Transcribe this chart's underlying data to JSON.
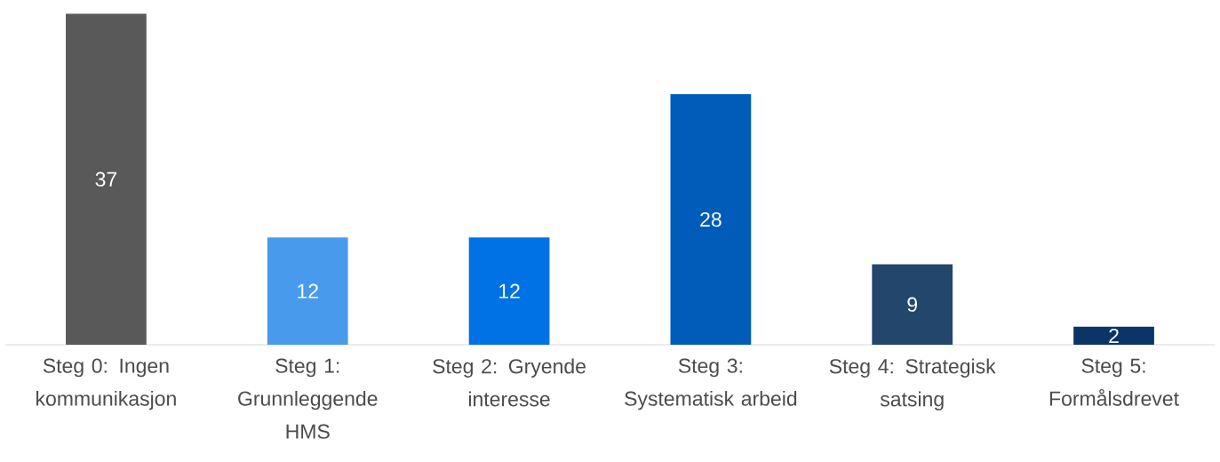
{
  "chart_data": {
    "type": "bar",
    "categories": [
      "Steg 0: Ingen kommunikasjon",
      "Steg 1: Grunnleggende HMS",
      "Steg 2: Gryende interesse",
      "Steg 3: Systematisk arbeid",
      "Steg 4: Strategisk satsing",
      "Steg 5: Formålsdrevet"
    ],
    "values": [
      37,
      12,
      12,
      28,
      9,
      2
    ],
    "colors": [
      "#595959",
      "#489bec",
      "#0072e5",
      "#005bb9",
      "#23466d",
      "#0b3566"
    ],
    "data_labels": true
  }
}
